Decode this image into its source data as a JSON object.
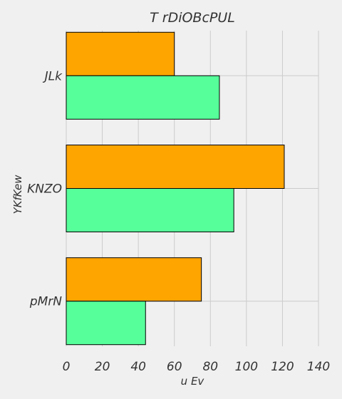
{
  "chart_data": {
    "type": "bar",
    "orientation": "horizontal",
    "title": "T rDiOBcPUL",
    "xlabel": "u Ev",
    "ylabel": "YKfKew",
    "categories": [
      "JLk",
      "KNZO",
      "pMrN"
    ],
    "series": [
      {
        "color": "#57ff9a",
        "values": [
          85,
          93,
          44
        ]
      },
      {
        "color": "#ffa500",
        "values": [
          60,
          121,
          75
        ]
      }
    ],
    "xlim": [
      0,
      140
    ],
    "xticks": [
      0,
      20,
      40,
      60,
      80,
      100,
      120,
      140
    ],
    "grid": true,
    "legend": "none"
  },
  "colors": {
    "background": "#f0f0f0",
    "grid": "#cbcbcb",
    "text": "#333333"
  }
}
